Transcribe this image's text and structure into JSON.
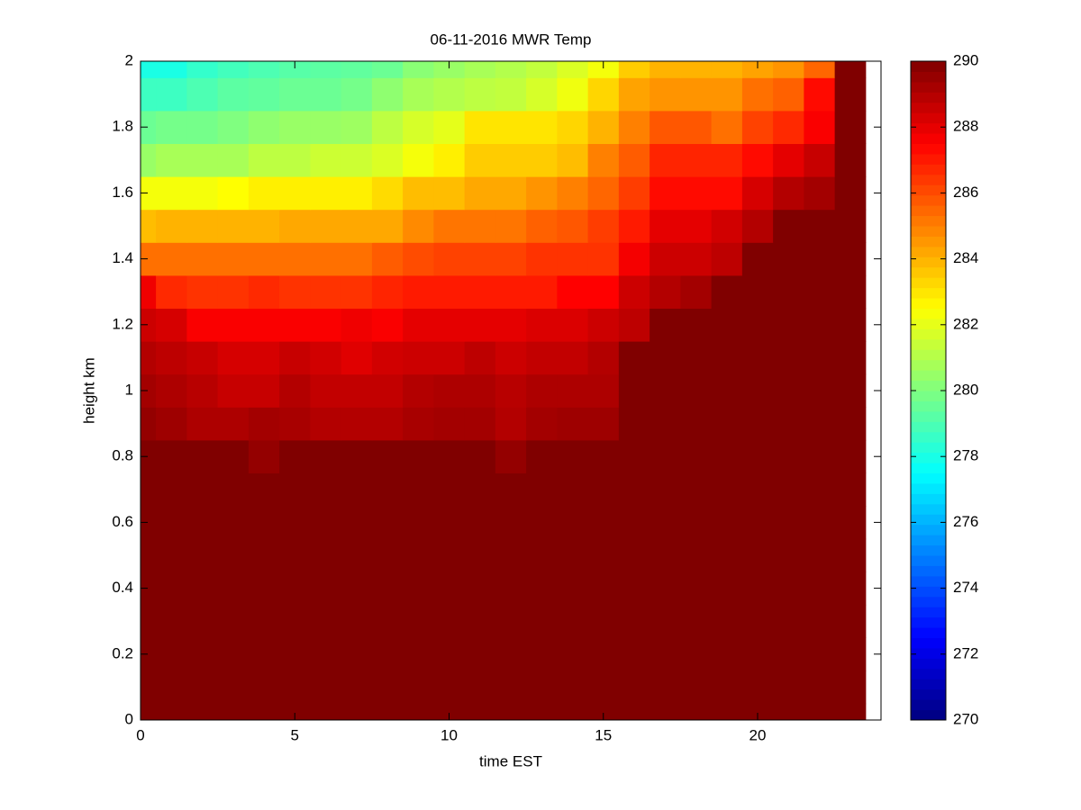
{
  "chart_data": {
    "type": "heatmap",
    "title": "06-11-2016 MWR Temp",
    "xlabel": "time EST",
    "ylabel": "height km",
    "x": [
      0,
      1,
      2,
      3,
      4,
      5,
      6,
      7,
      8,
      9,
      10,
      11,
      12,
      13,
      14,
      15,
      16,
      17,
      18,
      19,
      20,
      21,
      22,
      23
    ],
    "y": [
      0,
      0.1,
      0.2,
      0.3,
      0.4,
      0.5,
      0.6,
      0.7,
      0.8,
      0.9,
      1.0,
      1.1,
      1.2,
      1.3,
      1.4,
      1.5,
      1.6,
      1.7,
      1.8,
      1.9,
      2.0
    ],
    "values": [
      [
        290,
        290,
        290,
        290,
        290,
        290,
        290,
        290,
        290,
        290,
        290,
        290,
        290,
        290,
        290,
        290,
        290,
        290,
        290,
        290,
        290,
        290,
        290,
        290
      ],
      [
        290,
        290,
        290,
        290,
        290,
        290,
        290,
        290,
        290,
        290,
        290,
        290,
        290,
        290,
        290,
        290,
        290,
        290,
        290,
        290,
        290,
        290,
        290,
        290
      ],
      [
        290,
        290,
        290,
        290,
        290,
        290,
        290,
        290,
        290,
        290,
        290,
        290,
        290,
        290,
        290,
        290,
        290,
        290,
        290,
        290,
        290,
        290,
        290,
        290
      ],
      [
        290,
        290,
        290,
        290,
        290,
        290,
        290,
        290,
        290,
        290,
        290,
        290,
        290,
        290,
        290,
        290,
        290,
        290,
        290,
        290,
        290,
        290,
        290,
        290
      ],
      [
        290,
        290,
        290,
        290,
        290,
        290,
        290,
        290,
        290,
        290,
        290,
        290,
        290,
        290,
        290,
        290,
        290,
        290,
        290,
        290,
        290,
        290,
        290,
        290
      ],
      [
        290,
        290,
        290,
        290,
        290,
        290,
        290,
        290,
        290,
        290,
        290,
        290,
        290,
        290,
        290,
        290,
        290,
        290,
        290,
        290,
        290,
        290,
        290,
        290
      ],
      [
        290,
        290,
        290,
        290,
        290,
        290,
        290,
        290,
        290,
        290,
        290,
        290,
        290,
        290,
        290,
        290,
        290,
        290,
        290,
        290,
        290,
        290,
        290,
        290
      ],
      [
        290,
        290,
        290,
        290,
        290,
        290,
        290,
        290,
        290,
        290,
        290,
        290,
        290,
        290,
        290,
        290,
        290,
        290,
        290,
        290,
        290,
        290,
        290,
        290
      ],
      [
        290,
        290,
        290,
        290,
        289.6,
        290,
        290,
        290,
        290,
        290,
        290,
        290,
        289.6,
        290,
        290,
        290,
        290,
        290,
        290,
        290,
        290,
        290,
        290,
        290
      ],
      [
        289.6,
        289.4,
        289.1,
        289.1,
        289.3,
        289.2,
        289,
        289,
        289,
        289.2,
        289.3,
        289.3,
        289,
        289.3,
        289.4,
        289.4,
        290,
        290,
        290,
        290,
        290,
        290,
        290,
        290
      ],
      [
        289.3,
        289.1,
        288.9,
        288.6,
        288.6,
        289,
        288.7,
        288.7,
        288.7,
        289,
        289.1,
        289.1,
        288.9,
        289.1,
        289.1,
        289.1,
        290,
        290,
        290,
        290,
        290,
        290,
        290,
        290
      ],
      [
        289,
        288.8,
        288.6,
        288.3,
        288.3,
        288.6,
        288.4,
        288.1,
        288.4,
        288.5,
        288.5,
        288.8,
        288.5,
        288.7,
        288.7,
        289,
        290,
        290,
        290,
        290,
        290,
        290,
        290,
        290
      ],
      [
        288.5,
        288.3,
        287.6,
        287.6,
        287.6,
        287.6,
        287.6,
        287.8,
        287.6,
        288,
        288,
        288,
        288,
        288.2,
        288.2,
        288.5,
        288.8,
        290,
        290,
        290,
        290,
        290,
        290,
        290
      ],
      [
        287.8,
        286.7,
        286.5,
        286.5,
        286.7,
        286.5,
        286.5,
        286.5,
        286.8,
        287,
        287,
        287,
        287,
        287,
        287.5,
        287.5,
        288.5,
        289,
        289.3,
        290,
        290,
        290,
        290,
        290
      ],
      [
        285.3,
        285.3,
        285.3,
        285.3,
        285.3,
        285.3,
        285.3,
        285.3,
        285.7,
        286,
        286.2,
        286.2,
        286.2,
        286.5,
        286.5,
        286.5,
        287.7,
        288.5,
        288.5,
        288.8,
        290,
        290,
        290,
        290
      ],
      [
        283.8,
        284,
        284,
        284,
        284,
        284.2,
        284.2,
        284.2,
        284.2,
        284.8,
        285.2,
        285.2,
        285.2,
        285.6,
        285.8,
        286.3,
        287,
        288,
        288,
        288.4,
        289,
        290,
        290,
        290
      ],
      [
        282.3,
        282.3,
        282.3,
        282.5,
        282.8,
        282.8,
        282.8,
        282.8,
        283.2,
        283.8,
        283.8,
        284.2,
        284.2,
        284.6,
        285,
        285.5,
        286.3,
        287.3,
        287.3,
        287.3,
        288.3,
        289,
        289.3,
        290
      ],
      [
        280.5,
        280.8,
        280.8,
        280.8,
        281.2,
        281.2,
        281.5,
        281.5,
        281.8,
        282.3,
        282.8,
        283.5,
        283.5,
        283.5,
        283.8,
        285,
        285.7,
        286.8,
        286.8,
        286.8,
        287.3,
        288,
        288.6,
        290
      ],
      [
        279.6,
        279.8,
        279.8,
        280,
        280.3,
        280.5,
        280.5,
        280.6,
        281.2,
        281.7,
        282,
        283,
        283,
        283,
        283.3,
        284,
        285,
        285.8,
        285.8,
        285.3,
        286.2,
        286.7,
        287.6,
        290
      ],
      [
        278.7,
        278.7,
        279,
        279.3,
        279.4,
        279.6,
        279.6,
        279.8,
        280.3,
        280.8,
        281,
        281.2,
        281.3,
        281.7,
        282.2,
        283.3,
        284.3,
        284.6,
        284.6,
        284.6,
        285.3,
        285.6,
        287.3,
        290
      ],
      [
        278,
        278,
        278.5,
        278.8,
        279,
        279.2,
        279.3,
        279.4,
        279.6,
        280.2,
        280.5,
        280.8,
        281,
        281.3,
        281.8,
        282.3,
        283.5,
        284,
        284,
        284,
        284.3,
        284.6,
        285.5,
        290
      ]
    ],
    "xlim": [
      0,
      24
    ],
    "ylim": [
      0,
      2
    ],
    "xticks": [
      0,
      5,
      10,
      15,
      20
    ],
    "yticks": [
      0,
      0.2,
      0.4,
      0.6,
      0.8,
      1,
      1.2,
      1.4,
      1.6,
      1.8,
      2
    ],
    "colormap": "jet",
    "clim": [
      270,
      290
    ],
    "cticks": [
      270,
      272,
      274,
      276,
      278,
      280,
      282,
      284,
      286,
      288,
      290
    ]
  }
}
